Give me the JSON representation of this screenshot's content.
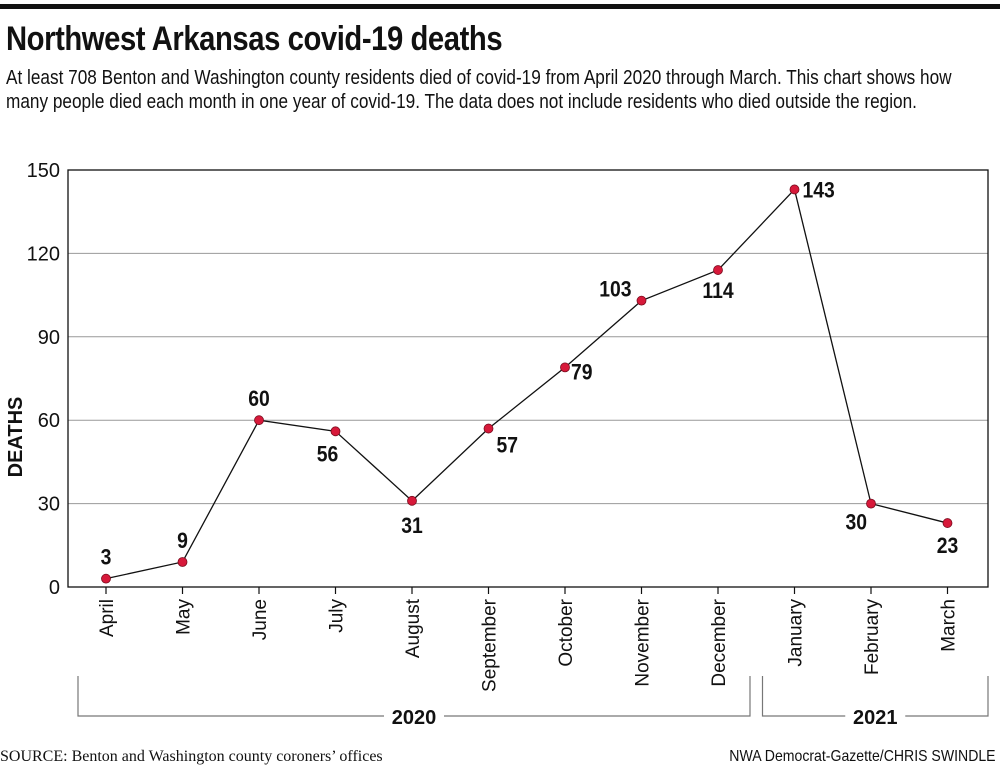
{
  "header": {
    "title": "Northwest Arkansas covid-19 deaths",
    "subtitle": "At least 708 Benton and Washington county residents died of covid-19 from April 2020 through March. This chart shows how many people died each month in one year of covid-19. The data does not include residents who died outside the region."
  },
  "footer": {
    "source": "SOURCE: Benton and Washington county coroners’ offices",
    "credit": "NWA Democrat-Gazette/CHRIS SWINDLE"
  },
  "chart_data": {
    "type": "line",
    "title": "Northwest Arkansas covid-19 deaths",
    "ylabel": "DEATHS",
    "xlabel": "",
    "ylim": [
      0,
      150
    ],
    "yticks": [
      0,
      30,
      60,
      90,
      120,
      150
    ],
    "grid": true,
    "legend": "none",
    "categories": [
      "April",
      "May",
      "June",
      "July",
      "August",
      "September",
      "October",
      "November",
      "December",
      "January",
      "February",
      "March"
    ],
    "series": [
      {
        "values": [
          3,
          9,
          60,
          56,
          31,
          57,
          79,
          103,
          114,
          143,
          30,
          23
        ]
      }
    ],
    "year_groups": [
      {
        "label": "2020",
        "from": "April",
        "to": "December"
      },
      {
        "label": "2021",
        "from": "January",
        "to": "March"
      }
    ],
    "colors": {
      "marker": "#d7193a",
      "line": "#111111",
      "grid": "#999999"
    }
  }
}
